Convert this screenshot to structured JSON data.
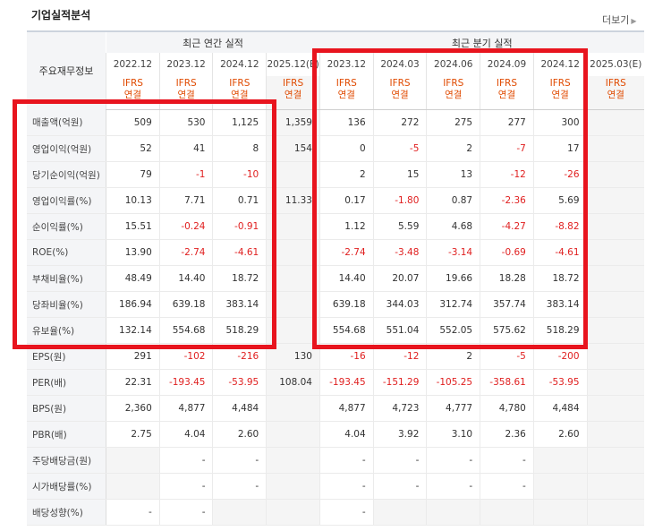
{
  "header": {
    "title": "기업실적분석",
    "more_label": "더보기"
  },
  "table": {
    "label_header": "주요재무정보",
    "annual_group_label": "최근 연간 실적",
    "quarter_group_label": "최근 분기 실적",
    "periods": [
      "2022.12",
      "2023.12",
      "2024.12",
      "2025.12(E)",
      "2023.12",
      "2024.03",
      "2024.06",
      "2024.09",
      "2024.12",
      "2025.03(E)"
    ],
    "basis_line1": "IFRS",
    "basis_line2": "연결",
    "rows": [
      {
        "label": "매출액(억원)",
        "values": [
          "509",
          "530",
          "1,125",
          "1,359",
          "136",
          "272",
          "275",
          "277",
          "300",
          ""
        ]
      },
      {
        "label": "영업이익(억원)",
        "values": [
          "52",
          "41",
          "8",
          "154",
          "0",
          "-5",
          "2",
          "-7",
          "17",
          ""
        ]
      },
      {
        "label": "당기순이익(억원)",
        "values": [
          "79",
          "-1",
          "-10",
          "",
          "2",
          "15",
          "13",
          "-12",
          "-26",
          ""
        ]
      },
      {
        "label": "영업이익률(%)",
        "values": [
          "10.13",
          "7.71",
          "0.71",
          "11.33",
          "0.17",
          "-1.80",
          "0.87",
          "-2.36",
          "5.69",
          ""
        ]
      },
      {
        "label": "순이익률(%)",
        "values": [
          "15.51",
          "-0.24",
          "-0.91",
          "",
          "1.12",
          "5.59",
          "4.68",
          "-4.27",
          "-8.82",
          ""
        ]
      },
      {
        "label": "ROE(%)",
        "values": [
          "13.90",
          "-2.74",
          "-4.61",
          "",
          "-2.74",
          "-3.48",
          "-3.14",
          "-0.69",
          "-4.61",
          ""
        ]
      },
      {
        "label": "부채비율(%)",
        "values": [
          "48.49",
          "14.40",
          "18.72",
          "",
          "14.40",
          "20.07",
          "19.66",
          "18.28",
          "18.72",
          ""
        ]
      },
      {
        "label": "당좌비율(%)",
        "values": [
          "186.94",
          "639.18",
          "383.14",
          "",
          "639.18",
          "344.03",
          "312.74",
          "357.74",
          "383.14",
          ""
        ]
      },
      {
        "label": "유보율(%)",
        "values": [
          "132.14",
          "554.68",
          "518.29",
          "",
          "554.68",
          "551.04",
          "552.05",
          "575.62",
          "518.29",
          ""
        ]
      },
      {
        "label": "EPS(원)",
        "values": [
          "291",
          "-102",
          "-216",
          "130",
          "-16",
          "-12",
          "2",
          "-5",
          "-200",
          ""
        ]
      },
      {
        "label": "PER(배)",
        "values": [
          "22.31",
          "-193.45",
          "-53.95",
          "108.04",
          "-193.45",
          "-151.29",
          "-105.25",
          "-358.61",
          "-53.95",
          ""
        ]
      },
      {
        "label": "BPS(원)",
        "values": [
          "2,360",
          "4,877",
          "4,484",
          "",
          "4,877",
          "4,723",
          "4,777",
          "4,780",
          "4,484",
          ""
        ]
      },
      {
        "label": "PBR(배)",
        "values": [
          "2.75",
          "4.04",
          "2.60",
          "",
          "4.04",
          "3.92",
          "3.10",
          "2.36",
          "2.60",
          ""
        ]
      },
      {
        "label": "주당배당금(원)",
        "values": [
          "",
          "-",
          "-",
          "",
          "-",
          "-",
          "-",
          "-",
          "",
          ""
        ]
      },
      {
        "label": "시가배당률(%)",
        "values": [
          "",
          "-",
          "-",
          "",
          "-",
          "-",
          "-",
          "-",
          "",
          ""
        ]
      },
      {
        "label": "배당성향(%)",
        "values": [
          "-",
          "-",
          "",
          "",
          "-",
          "",
          "",
          "",
          "",
          ""
        ]
      }
    ]
  },
  "highlight_color": "#e8141e",
  "negative_color": "#e02020"
}
